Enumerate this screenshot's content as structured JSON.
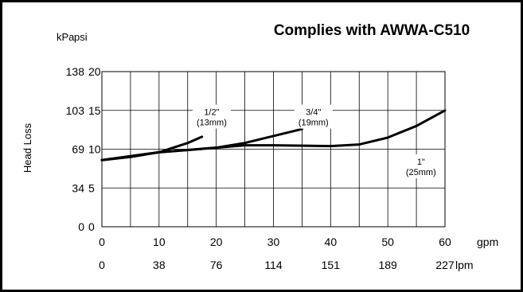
{
  "chart_data": {
    "type": "line",
    "title": "Complies with AWWA-C510",
    "ylabel": "Head Loss",
    "y_unit_labels": [
      "kPa",
      "psi"
    ],
    "x_unit_labels": [
      "gpm",
      "lpm"
    ],
    "xlim": [
      0,
      60
    ],
    "ylim": [
      0,
      20
    ],
    "grid": true,
    "x_ticks_gpm": [
      "0",
      "10",
      "20",
      "30",
      "40",
      "50",
      "60"
    ],
    "x_ticks_lpm": [
      "0",
      "38",
      "76",
      "114",
      "151",
      "189",
      "227"
    ],
    "y_ticks_psi": [
      "0",
      "5",
      "10",
      "15",
      "20"
    ],
    "y_ticks_kpa": [
      "0",
      "34",
      "69",
      "103",
      "138"
    ],
    "series": [
      {
        "name": "1/2\" (13mm)",
        "label_lines": [
          "1/2\"",
          "(13mm)"
        ],
        "x": [
          0,
          5,
          10,
          15,
          17.5
        ],
        "y": [
          8.6,
          9.0,
          9.6,
          10.8,
          11.6
        ]
      },
      {
        "name": "3/4\" (19mm)",
        "label_lines": [
          "3/4\"",
          "(19mm)"
        ],
        "x": [
          0,
          10,
          20,
          25,
          30,
          35
        ],
        "y": [
          8.6,
          9.6,
          10.2,
          10.8,
          11.7,
          12.6
        ]
      },
      {
        "name": "1\" (25mm)",
        "label_lines": [
          "1\"",
          "(25mm)"
        ],
        "x": [
          0,
          10,
          20,
          25,
          30,
          40,
          45,
          50,
          55,
          60
        ],
        "y": [
          8.6,
          9.6,
          10.2,
          10.5,
          10.5,
          10.4,
          10.6,
          11.5,
          13.0,
          15.0
        ]
      }
    ]
  }
}
